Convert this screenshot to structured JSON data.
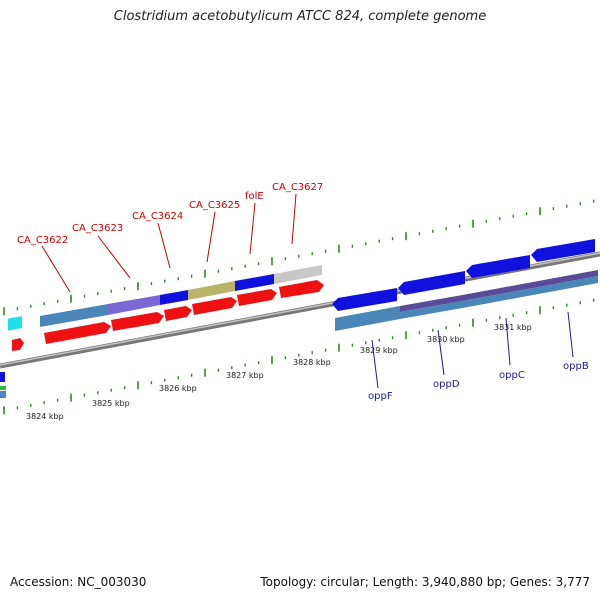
{
  "title": "Clostridium acetobutylicum ATCC 824, complete genome",
  "accession": "Accession: NC_003030",
  "stats": "Topology: circular; Length: 3,940,880 bp; Genes: 3,777",
  "colors": {
    "backbone": "#888888",
    "tick": "#2e8b22",
    "label_top": "#cc0000",
    "label_bottom": "#1a1aa6",
    "cds_red": "#ee1111",
    "cds_blue": "#1111dd",
    "cds_steel": "#4a86b8",
    "cds_purple": "#7b68d6",
    "cds_olive": "#b8b46a",
    "cds_gray": "#c8c8c8",
    "cds_cyan": "#22e0e8",
    "cds_dark": "#2a2a9a",
    "cds_dark_purple": "#5a4a9a"
  },
  "scale_labels": [
    "3824 kbp",
    "3825 kbp",
    "3826 kbp",
    "3827 kbp",
    "3828 kbp",
    "3829 kbp",
    "3830 kbp",
    "3831 kbp"
  ],
  "top_gene_labels": [
    "CA_C3622",
    "CA_C3623",
    "CA_C3624",
    "CA_C3625",
    "folE",
    "CA_C3627"
  ],
  "bottom_gene_labels": [
    "oppF",
    "oppD",
    "oppC",
    "oppB"
  ]
}
